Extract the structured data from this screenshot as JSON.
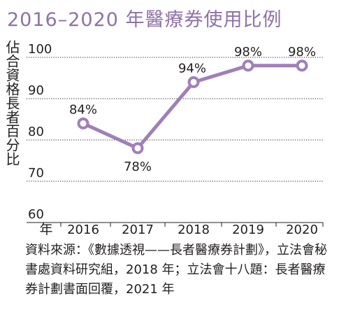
{
  "title": "2016–2020 年醫療券使用比例",
  "chart_data": {
    "type": "line",
    "title": "2016–2020 年醫療券使用比例",
    "ylabel": "佔合資格長者百分比",
    "xlabel": "年",
    "categories": [
      "2016",
      "2017",
      "2018",
      "2019",
      "2020"
    ],
    "values": [
      84,
      78,
      94,
      98,
      98
    ],
    "data_labels": [
      "84%",
      "78%",
      "94%",
      "98%",
      "98%"
    ],
    "yticks": [
      "100",
      "90",
      "80",
      "70",
      "60"
    ],
    "ylim": [
      60,
      100
    ],
    "grid": "dotted horizontal",
    "color": "#a17fb8"
  },
  "source": "資料來源：《數據透視——長者醫療券計劃》，立法會秘書處資料研究組，2018 年；立法會十八題：長者醫療券計劃書面回覆，2021 年"
}
